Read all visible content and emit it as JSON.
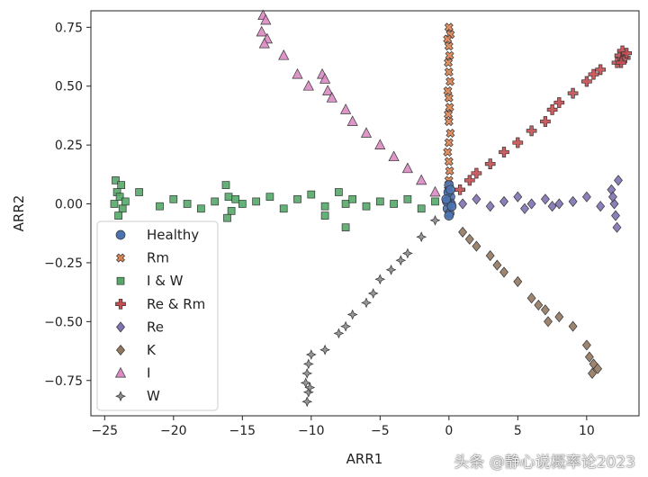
{
  "chart_data": {
    "type": "scatter",
    "xlabel": "ARR1",
    "ylabel": "ARR2",
    "xlim": [
      -26.0,
      13.8
    ],
    "ylim": [
      -0.9,
      0.82
    ],
    "xticks": [
      -25,
      -20,
      -15,
      -10,
      -5,
      0,
      5,
      10
    ],
    "yticks": [
      -0.75,
      -0.5,
      -0.25,
      0.0,
      0.25,
      0.5,
      0.75
    ],
    "xtick_labels": [
      "−25",
      "−20",
      "−15",
      "−10",
      "−5",
      "0",
      "5",
      "10"
    ],
    "ytick_labels": [
      "−0.75",
      "−0.50",
      "−0.25",
      "0.00",
      "0.25",
      "0.50",
      "0.75"
    ],
    "grid": false,
    "legend_position": "lower-left",
    "series": [
      {
        "name": "Healthy",
        "marker": "circle",
        "color": "#4c72b0",
        "points": [
          [
            0,
            0.01
          ],
          [
            -0.1,
            -0.02
          ],
          [
            0.1,
            0.03
          ],
          [
            -0.05,
            0.05
          ],
          [
            0.05,
            -0.04
          ],
          [
            0.15,
            0.0
          ],
          [
            -0.15,
            0.01
          ],
          [
            0,
            0.08
          ],
          [
            0,
            -0.05
          ],
          [
            -0.2,
            0.02
          ],
          [
            0.2,
            -0.01
          ],
          [
            0.1,
            0.06
          ]
        ]
      },
      {
        "name": "Rm",
        "marker": "x",
        "color": "#dd8452",
        "points": [
          [
            0,
            0.75
          ],
          [
            0.1,
            0.72
          ],
          [
            -0.1,
            0.7
          ],
          [
            0,
            0.67
          ],
          [
            0.05,
            0.63
          ],
          [
            -0.05,
            0.6
          ],
          [
            0,
            0.56
          ],
          [
            0.08,
            0.52
          ],
          [
            -0.08,
            0.48
          ],
          [
            0,
            0.45
          ],
          [
            0.05,
            0.41
          ],
          [
            -0.05,
            0.38
          ],
          [
            0,
            0.35
          ],
          [
            0.1,
            0.3
          ],
          [
            0,
            0.26
          ],
          [
            -0.1,
            0.22
          ],
          [
            0,
            0.18
          ],
          [
            0.05,
            0.14
          ],
          [
            0,
            0.1
          ],
          [
            -0.05,
            0.06
          ]
        ]
      },
      {
        "name": "I & W",
        "marker": "square",
        "color": "#55a868",
        "points": [
          [
            -24.2,
            0.1
          ],
          [
            -24.1,
            0.05
          ],
          [
            -24.3,
            0.0
          ],
          [
            -23.9,
            0.03
          ],
          [
            -23.7,
            -0.02
          ],
          [
            -24.0,
            -0.05
          ],
          [
            -23.8,
            0.08
          ],
          [
            -23.5,
            0.01
          ],
          [
            -22.5,
            0.05
          ],
          [
            -21,
            -0.01
          ],
          [
            -20,
            0.02
          ],
          [
            -19,
            0.0
          ],
          [
            -18,
            -0.02
          ],
          [
            -17,
            0.01
          ],
          [
            -16.2,
            0.08
          ],
          [
            -16,
            0.03
          ],
          [
            -15.8,
            -0.03
          ],
          [
            -16.1,
            -0.06
          ],
          [
            -15.5,
            0.02
          ],
          [
            -15,
            0.0
          ],
          [
            -14,
            0.01
          ],
          [
            -13,
            0.03
          ],
          [
            -12,
            -0.02
          ],
          [
            -11,
            0.02
          ],
          [
            -10,
            0.04
          ],
          [
            -9,
            -0.01
          ],
          [
            -8,
            0.05
          ],
          [
            -7.5,
            0.0
          ],
          [
            -7,
            0.02
          ],
          [
            -6,
            -0.01
          ],
          [
            -5,
            0.01
          ],
          [
            -4,
            0.0
          ],
          [
            -3,
            0.02
          ],
          [
            -2,
            -0.02
          ],
          [
            -1,
            0.01
          ],
          [
            -7.5,
            -0.1
          ],
          [
            -9,
            -0.05
          ]
        ]
      },
      {
        "name": "Re & Rm",
        "marker": "plus",
        "color": "#c44e52",
        "points": [
          [
            0.8,
            0.06
          ],
          [
            1.5,
            0.1
          ],
          [
            2,
            0.13
          ],
          [
            3,
            0.17
          ],
          [
            4,
            0.22
          ],
          [
            5,
            0.26
          ],
          [
            6,
            0.31
          ],
          [
            7,
            0.35
          ],
          [
            7.5,
            0.4
          ],
          [
            8,
            0.43
          ],
          [
            9,
            0.47
          ],
          [
            10,
            0.52
          ],
          [
            10.5,
            0.55
          ],
          [
            11,
            0.57
          ],
          [
            12.2,
            0.6
          ],
          [
            12.4,
            0.63
          ],
          [
            12.6,
            0.65
          ],
          [
            12.8,
            0.62
          ],
          [
            12.5,
            0.6
          ],
          [
            12.9,
            0.64
          ]
        ]
      },
      {
        "name": "Re",
        "marker": "diamond",
        "color": "#8172b3",
        "points": [
          [
            1,
            0.0
          ],
          [
            2,
            0.02
          ],
          [
            3,
            -0.01
          ],
          [
            4,
            0.01
          ],
          [
            5,
            0.03
          ],
          [
            5.5,
            -0.02
          ],
          [
            6,
            0.0
          ],
          [
            7,
            0.02
          ],
          [
            7.5,
            -0.01
          ],
          [
            8,
            0.0
          ],
          [
            9,
            0.01
          ],
          [
            10,
            0.03
          ],
          [
            11,
            -0.01
          ],
          [
            12,
            0.0
          ],
          [
            12.2,
            -0.1
          ],
          [
            12.3,
            0.1
          ],
          [
            11.8,
            0.06
          ],
          [
            12.1,
            -0.05
          ],
          [
            11.9,
            0.03
          ]
        ]
      },
      {
        "name": "K",
        "marker": "diamond",
        "color": "#937860",
        "points": [
          [
            1,
            -0.12
          ],
          [
            1.5,
            -0.15
          ],
          [
            2,
            -0.18
          ],
          [
            3,
            -0.22
          ],
          [
            3.5,
            -0.26
          ],
          [
            4,
            -0.29
          ],
          [
            5,
            -0.33
          ],
          [
            6,
            -0.4
          ],
          [
            6.5,
            -0.43
          ],
          [
            7,
            -0.45
          ],
          [
            7.2,
            -0.5
          ],
          [
            8,
            -0.48
          ],
          [
            9,
            -0.52
          ],
          [
            10,
            -0.6
          ],
          [
            10.2,
            -0.65
          ],
          [
            10.5,
            -0.68
          ],
          [
            10.8,
            -0.7
          ],
          [
            10.4,
            -0.72
          ]
        ]
      },
      {
        "name": "I",
        "marker": "triangle",
        "color": "#da8bc3",
        "points": [
          [
            -13.5,
            0.8
          ],
          [
            -13.3,
            0.78
          ],
          [
            -13.6,
            0.73
          ],
          [
            -13.2,
            0.7
          ],
          [
            -13.4,
            0.68
          ],
          [
            -12,
            0.63
          ],
          [
            -11,
            0.55
          ],
          [
            -10.2,
            0.5
          ],
          [
            -9.2,
            0.55
          ],
          [
            -9,
            0.53
          ],
          [
            -8.8,
            0.48
          ],
          [
            -8.5,
            0.45
          ],
          [
            -7.5,
            0.4
          ],
          [
            -7,
            0.35
          ],
          [
            -6,
            0.3
          ],
          [
            -5,
            0.25
          ],
          [
            -4,
            0.2
          ],
          [
            -3,
            0.15
          ],
          [
            -2,
            0.1
          ],
          [
            -1,
            0.05
          ]
        ]
      },
      {
        "name": "W",
        "marker": "star",
        "color": "#8c8c8c",
        "points": [
          [
            -1,
            -0.07
          ],
          [
            -2,
            -0.14
          ],
          [
            -3,
            -0.21
          ],
          [
            -3.5,
            -0.24
          ],
          [
            -4.2,
            -0.28
          ],
          [
            -5,
            -0.32
          ],
          [
            -5.5,
            -0.38
          ],
          [
            -6,
            -0.42
          ],
          [
            -7,
            -0.47
          ],
          [
            -7.5,
            -0.52
          ],
          [
            -8,
            -0.55
          ],
          [
            -9,
            -0.62
          ],
          [
            -10,
            -0.64
          ],
          [
            -10.2,
            -0.68
          ],
          [
            -10.3,
            -0.72
          ],
          [
            -10.4,
            -0.76
          ],
          [
            -10.2,
            -0.8
          ],
          [
            -10.3,
            -0.84
          ],
          [
            -10.1,
            -0.78
          ]
        ]
      }
    ]
  },
  "watermark": "头条 @静心说概率论2023"
}
